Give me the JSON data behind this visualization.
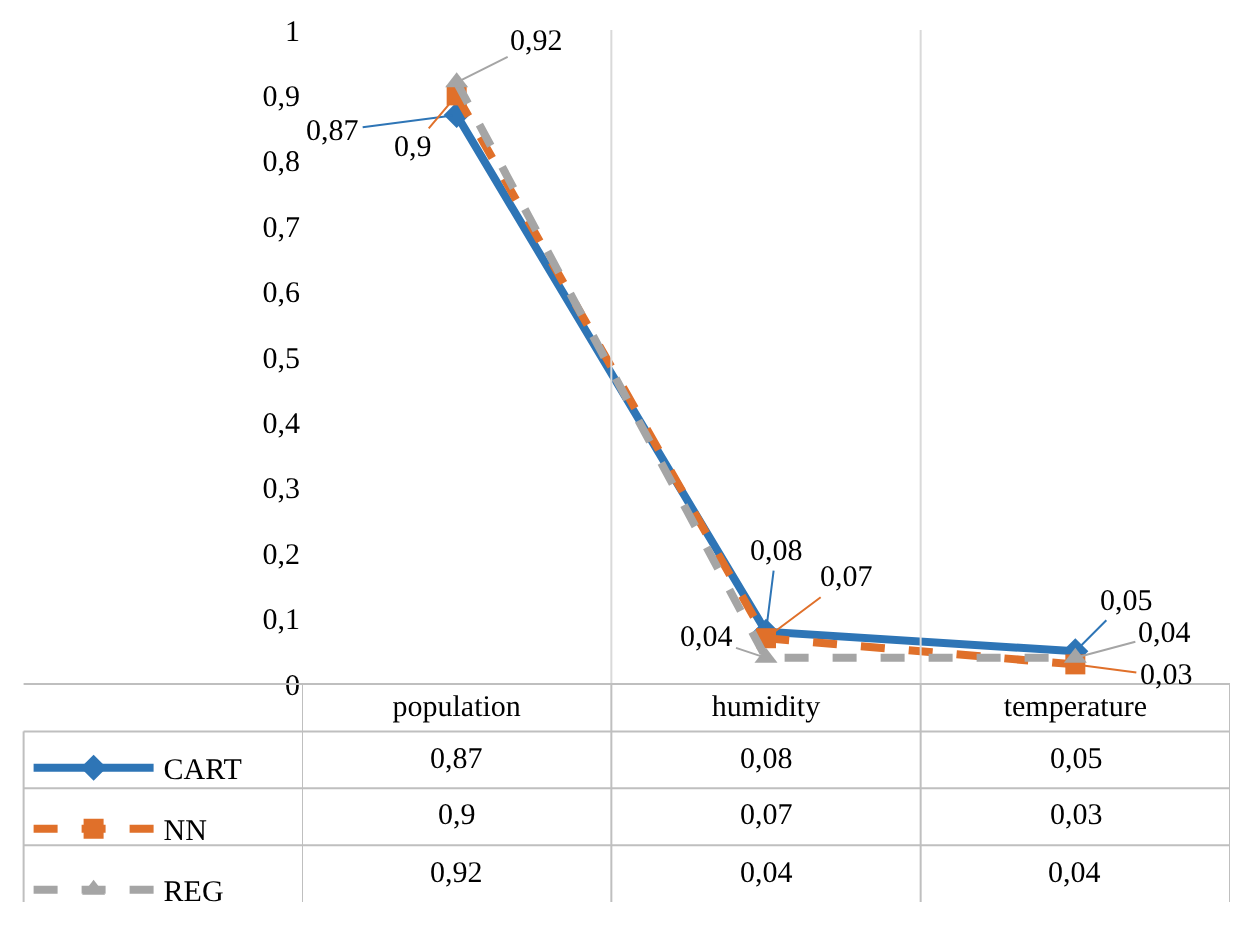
{
  "chart_data": {
    "type": "line",
    "categories": [
      "population",
      "humidity",
      "temperature"
    ],
    "ylim": [
      0,
      1
    ],
    "yticks": [
      0,
      {
        "value": 0.1,
        "label": "0,1"
      },
      {
        "value": 0.2,
        "label": "0,2"
      },
      {
        "value": 0.3,
        "label": "0,3"
      },
      {
        "value": 0.4,
        "label": "0,4"
      },
      {
        "value": 0.5,
        "label": "0,5"
      },
      {
        "value": 0.6,
        "label": "0,6"
      },
      {
        "value": 0.7,
        "label": "0,7"
      },
      {
        "value": 0.8,
        "label": "0,8"
      },
      {
        "value": 0.9,
        "label": "0,9"
      },
      1
    ],
    "grid": "x",
    "legend": "bottom left",
    "series": [
      {
        "name": "CART",
        "color": "#2e75b6",
        "values": [
          0.87,
          0.08,
          0.05
        ],
        "value_labels": [
          "0,87",
          "0,08",
          "0,05"
        ],
        "marker": "diamond",
        "line_style": "solid"
      },
      {
        "name": "NN",
        "color": "#e0702a",
        "values": [
          0.9,
          0.07,
          0.03
        ],
        "value_labels": [
          "0,9",
          "0,07",
          "0,03"
        ],
        "marker": "square",
        "line_style": "dashed"
      },
      {
        "name": "REG",
        "color": "#a5a5a5",
        "values": [
          0.92,
          0.04,
          0.04
        ],
        "value_labels": [
          "0,92",
          "0,04",
          "0,04"
        ],
        "marker": "triangle",
        "line_style": "dashed"
      }
    ]
  }
}
